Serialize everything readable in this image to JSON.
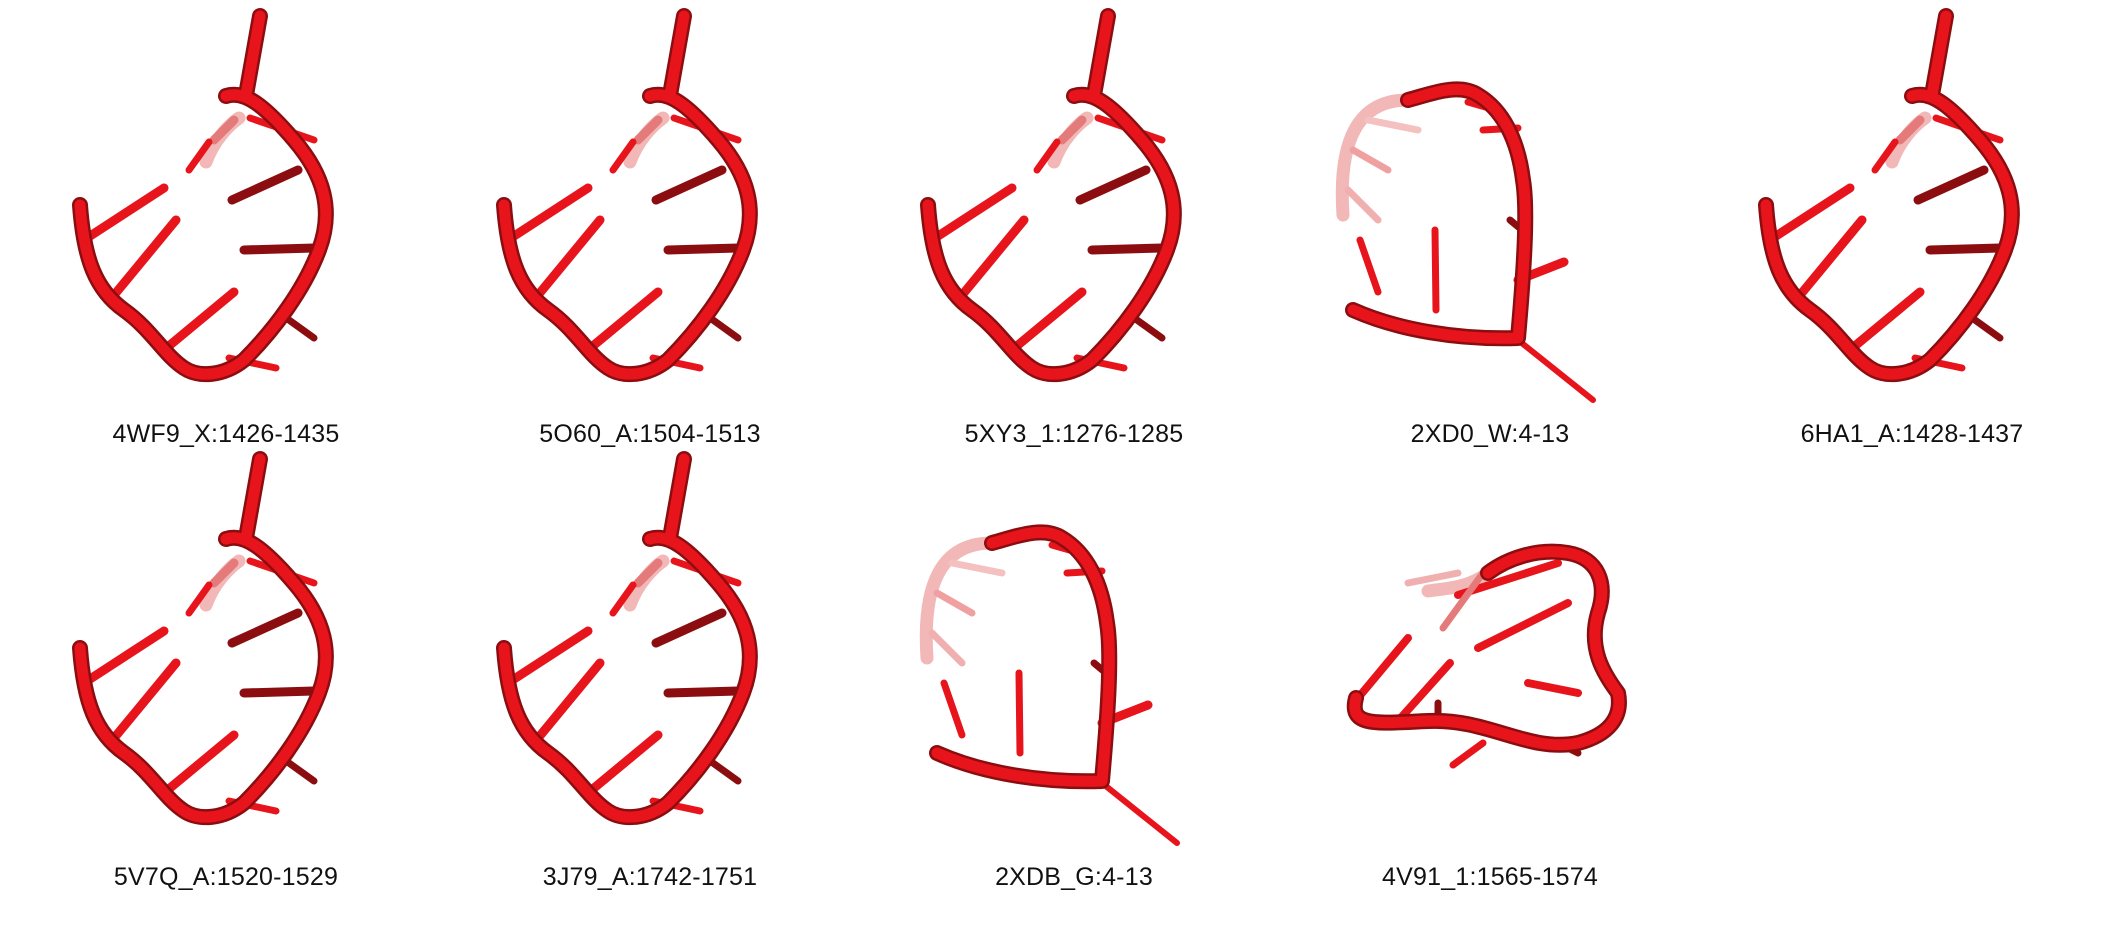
{
  "structures": [
    {
      "id": "4wf9",
      "label": "4WF9_X:1426-1435",
      "shape": "A"
    },
    {
      "id": "5o60",
      "label": "5O60_A:1504-1513",
      "shape": "A"
    },
    {
      "id": "5xy3",
      "label": "5XY3_1:1276-1285",
      "shape": "A"
    },
    {
      "id": "2xd0",
      "label": "2XD0_W:4-13",
      "shape": "B"
    },
    {
      "id": "6ha1",
      "label": "6HA1_A:1428-1437",
      "shape": "A"
    },
    {
      "id": "5v7q",
      "label": "5V7Q_A:1520-1529",
      "shape": "A"
    },
    {
      "id": "3j79",
      "label": "3J79_A:1742-1751",
      "shape": "A"
    },
    {
      "id": "2xdb",
      "label": "2XDB_G:4-13",
      "shape": "B"
    },
    {
      "id": "4v91",
      "label": "4V91_1:1565-1574",
      "shape": "C"
    }
  ],
  "colors": {
    "strand": "#e8141c",
    "strand_dark": "#8c0d10",
    "strand_light": "#f2b8b8",
    "label": "#111111"
  }
}
